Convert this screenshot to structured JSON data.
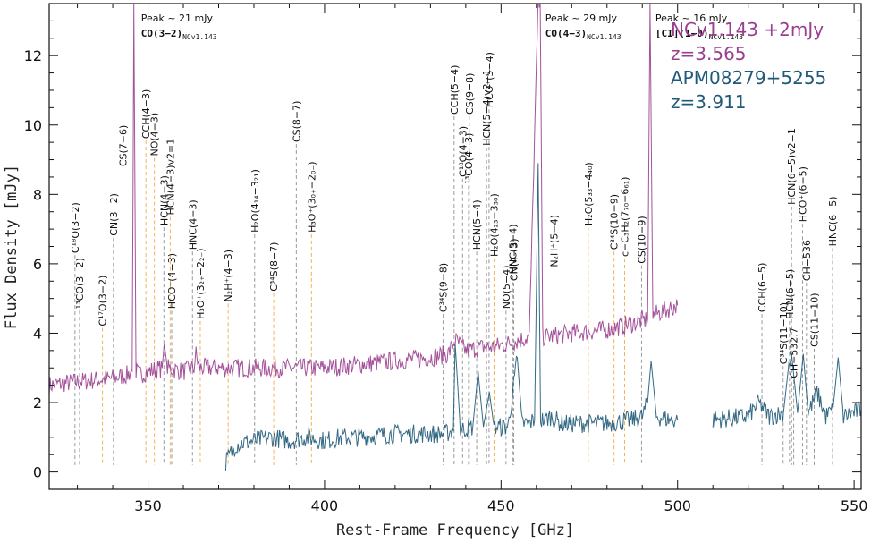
{
  "chart_data": {
    "type": "line",
    "title": "",
    "xlabel": "Rest-Frame Frequency [GHz]",
    "ylabel": "Flux Density [mJy]",
    "xlim": [
      322,
      552
    ],
    "ylim": [
      -0.5,
      13.5
    ],
    "x_ticks": [
      350,
      400,
      450,
      500,
      550
    ],
    "y_ticks": [
      0,
      2,
      4,
      6,
      8,
      10,
      12
    ],
    "grid": false,
    "legend_position": "top-right",
    "colors": {
      "ncv": "#9a3f8f",
      "apm": "#1f5a78",
      "marker_grey": "#9a9a9a",
      "marker_orange": "#f2b35a"
    },
    "legend": [
      {
        "lines": [
          "NCv1.143 +2mJy",
          "z=3.565"
        ],
        "color": "#9a3f8f"
      },
      {
        "lines": [
          "APM08279+5255",
          "z=3.911"
        ],
        "color": "#1f5a78"
      }
    ],
    "series": [
      {
        "name": "NCv1.143 +2mJy",
        "color": "#9a3f8f",
        "x": [
          322,
          330,
          340,
          344,
          345.5,
          346,
          346.6,
          347.5,
          350,
          354,
          354.6,
          355.5,
          360,
          363,
          363.6,
          364.5,
          370,
          380,
          390,
          400,
          410,
          420,
          430,
          435,
          437,
          440,
          445,
          448,
          452,
          455,
          458,
          460.5,
          461.1,
          461.8,
          463,
          470,
          480,
          488,
          491.5,
          492.2,
          493,
          495,
          500
        ],
        "y": [
          2.5,
          2.6,
          2.7,
          2.8,
          2.9,
          13.5,
          2.9,
          2.8,
          2.9,
          3.0,
          3.7,
          3.0,
          2.9,
          3.0,
          3.4,
          3.0,
          3.0,
          3.0,
          3.0,
          3.0,
          3.1,
          3.2,
          3.3,
          3.4,
          3.8,
          3.5,
          3.6,
          3.6,
          3.7,
          3.8,
          3.9,
          13.5,
          13.5,
          3.9,
          3.9,
          4.0,
          4.1,
          4.3,
          4.4,
          13.5,
          4.5,
          4.6,
          4.8
        ]
      },
      {
        "name": "APM08279+5255",
        "color": "#1f5a78",
        "x": [
          372,
          375,
          380,
          385,
          390,
          395,
          400,
          405,
          410,
          420,
          430,
          434,
          436.5,
          437,
          438.5,
          442,
          443.5,
          445,
          446.7,
          448,
          450,
          452,
          454.6,
          456,
          458,
          459.5,
          460.5,
          461.2,
          462.5,
          464,
          467,
          470,
          480,
          487,
          490,
          491.5,
          492.5,
          494,
          498,
          500,
          502,
          510,
          520,
          523,
          526,
          530,
          531.5,
          532.3,
          534,
          535.6,
          537,
          539.5,
          542,
          544,
          545.5,
          547,
          552
        ],
        "y": [
          0.3,
          0.8,
          0.9,
          1.0,
          0.9,
          1.0,
          0.9,
          1.0,
          1.0,
          1.1,
          1.1,
          1.1,
          1.2,
          3.7,
          1.2,
          1.3,
          2.9,
          1.3,
          2.3,
          1.3,
          1.3,
          1.3,
          3.3,
          1.4,
          1.4,
          1.5,
          8.9,
          1.5,
          1.5,
          1.6,
          1.4,
          1.4,
          1.4,
          1.5,
          1.6,
          2.0,
          3.2,
          1.6,
          1.5,
          1.5,
          null,
          1.5,
          1.6,
          2.0,
          1.6,
          1.7,
          3.1,
          3.4,
          1.7,
          3.4,
          1.7,
          2.3,
          1.6,
          1.8,
          3.3,
          1.6,
          1.8
        ]
      }
    ],
    "peak_annotations": [
      {
        "x": 346.5,
        "text": "Peak ~ 21 mJy",
        "label": "CO(3−2)",
        "sub": "NCv1.143"
      },
      {
        "x": 461.0,
        "text": "Peak ~ 29 mJy",
        "label": "CO(4−3)",
        "sub": "NCv1.143"
      },
      {
        "x": 492.2,
        "text": "Peak ~ 16 mJy",
        "label": "[CI](1−0)",
        "sub": "NCv1.143"
      }
    ],
    "line_markers": [
      {
        "x": 329.3,
        "label": "C¹⁸O(3−2)",
        "level": 6.2,
        "color": "grey"
      },
      {
        "x": 330.6,
        "label": "¹³CO(3−2)",
        "level": 4.6,
        "color": "grey"
      },
      {
        "x": 337.1,
        "label": "C¹⁷O(3−2)",
        "level": 4.1,
        "color": "orange"
      },
      {
        "x": 340.2,
        "label": "CN(3−2)",
        "level": 6.7,
        "color": "grey"
      },
      {
        "x": 342.9,
        "label": "CS(7−6)",
        "level": 8.7,
        "color": "grey"
      },
      {
        "x": 349.4,
        "label": "CCH(4−3)",
        "level": 9.5,
        "color": "orange"
      },
      {
        "x": 351.8,
        "label": "NO(4−3)",
        "level": 9.0,
        "color": "orange"
      },
      {
        "x": 354.5,
        "label": "HCN(4−3)",
        "level": 7.0,
        "color": "grey"
      },
      {
        "x": 356.7,
        "label": "HCO⁺(4−3)",
        "level": 4.6,
        "color": "grey"
      },
      {
        "x": 356.3,
        "label": "HCN(4−3)v2=1",
        "level": 7.3,
        "color": "orange"
      },
      {
        "x": 362.6,
        "label": "HNC(4−3)",
        "level": 6.3,
        "color": "grey"
      },
      {
        "x": 364.8,
        "label": "H₃O⁺(3₂₊−2₂₋)",
        "level": 4.3,
        "color": "orange"
      },
      {
        "x": 372.7,
        "label": "N₂H⁺(4−3)",
        "level": 4.8,
        "color": "orange"
      },
      {
        "x": 380.2,
        "label": "H₂O(4₁₄−3₂₁)",
        "level": 6.8,
        "color": "grey"
      },
      {
        "x": 385.6,
        "label": "C³⁴S(8−7)",
        "level": 5.1,
        "color": "orange"
      },
      {
        "x": 392.0,
        "label": "CS(8−7)",
        "level": 9.4,
        "color": "grey"
      },
      {
        "x": 396.3,
        "label": "H₃O⁺(3₀₊−2₀₋)",
        "level": 6.8,
        "color": "orange"
      },
      {
        "x": 433.6,
        "label": "C³⁴S(9−8)",
        "level": 4.5,
        "color": "grey"
      },
      {
        "x": 436.7,
        "label": "CCH(5−4)",
        "level": 10.2,
        "color": "grey"
      },
      {
        "x": 439.1,
        "label": "C¹⁸O(4−3)",
        "level": 8.4,
        "color": "grey"
      },
      {
        "x": 440.8,
        "label": "¹³CO(4−3)",
        "level": 8.2,
        "color": "grey"
      },
      {
        "x": 441.0,
        "label": "CS(9−8)",
        "level": 10.2,
        "color": "grey"
      },
      {
        "x": 443.1,
        "label": "HCN(5−4)",
        "level": 6.3,
        "color": "grey"
      },
      {
        "x": 445.9,
        "label": "HCN(5−4)v2=1",
        "level": 9.3,
        "color": "grey"
      },
      {
        "x": 446.6,
        "label": "HCO⁺(5−4)",
        "level": 10.4,
        "color": "grey"
      },
      {
        "x": 448.0,
        "label": "H₂O(4₂₃−3₃₀)",
        "level": 6.1,
        "color": "orange"
      },
      {
        "x": 451.4,
        "label": "NO(5−4)",
        "level": 4.6,
        "color": "grey"
      },
      {
        "x": 453.3,
        "label": "HNC(5−4)",
        "level": 5.6,
        "color": "grey"
      },
      {
        "x": 453.6,
        "label": "CN(4−3)",
        "level": 5.4,
        "color": "grey"
      },
      {
        "x": 465.0,
        "label": "N₂H⁺(5−4)",
        "level": 5.8,
        "color": "orange"
      },
      {
        "x": 474.7,
        "label": "H₂O(5₃₃−4₄₀)",
        "level": 7.0,
        "color": "orange"
      },
      {
        "x": 482.0,
        "label": "C³⁴S(10−9)",
        "level": 6.3,
        "color": "orange"
      },
      {
        "x": 485.0,
        "label": "c−C₃H₂(7₇₀−6₆₁)",
        "level": 6.1,
        "color": "orange"
      },
      {
        "x": 489.8,
        "label": "CS(10−9)",
        "level": 5.9,
        "color": "grey"
      },
      {
        "x": 523.9,
        "label": "CCH(6−5)",
        "level": 4.5,
        "color": "grey"
      },
      {
        "x": 529.9,
        "label": "C³⁴S(11−10)",
        "level": 3.0,
        "color": "grey"
      },
      {
        "x": 531.7,
        "label": "HCN(6−5)",
        "level": 4.3,
        "color": "grey"
      },
      {
        "x": 532.3,
        "label": "HCN(6−5)v2=1",
        "level": 7.6,
        "color": "grey"
      },
      {
        "x": 532.9,
        "label": "CH−532.7",
        "level": 2.6,
        "color": "grey"
      },
      {
        "x": 535.4,
        "label": "HCO⁺(6−5)",
        "level": 7.1,
        "color": "grey"
      },
      {
        "x": 536.5,
        "label": "CH−536",
        "level": 5.4,
        "color": "grey"
      },
      {
        "x": 538.7,
        "label": "CS(11−10)",
        "level": 3.5,
        "color": "grey"
      },
      {
        "x": 543.9,
        "label": "HNC(6−5)",
        "level": 6.4,
        "color": "grey"
      }
    ]
  }
}
